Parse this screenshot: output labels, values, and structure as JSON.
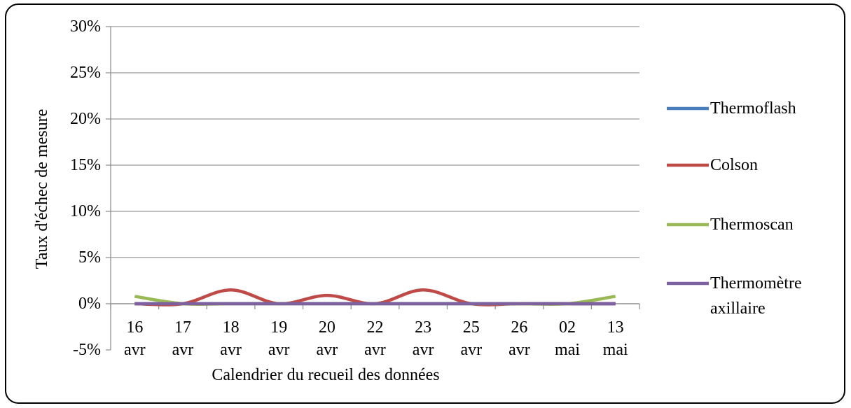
{
  "chart_data": {
    "type": "line",
    "ylabel": "Taux d'échec de mesure",
    "xlabel": "Calendrier du recueil des données",
    "categories": [
      "16 avr",
      "17 avr",
      "18 avr",
      "19 avr",
      "20 avr",
      "22 avr",
      "23 avr",
      "25 avr",
      "26 avr",
      "02 mai",
      "13 mai"
    ],
    "series": [
      {
        "name": "Thermoflash",
        "color": "#4a7ebb",
        "values": [
          0,
          0,
          0,
          0,
          0,
          0,
          0,
          0,
          0,
          0,
          0
        ]
      },
      {
        "name": "Colson",
        "color": "#be4b48",
        "values": [
          0,
          0,
          1.5,
          0,
          0.9,
          0,
          1.5,
          0,
          0,
          0,
          0
        ]
      },
      {
        "name": "Thermoscan",
        "color": "#98b954",
        "values": [
          0.8,
          0,
          0,
          0,
          0,
          0,
          0,
          0,
          0,
          0,
          0.8
        ]
      },
      {
        "name": "Thermomètre axillaire",
        "color": "#7d60a0",
        "values": [
          0,
          0,
          0,
          0,
          0,
          0,
          0,
          0,
          0,
          0,
          0
        ]
      }
    ],
    "ylim": [
      -5,
      30
    ],
    "yticks": [
      {
        "value": -5,
        "label": "-5%"
      },
      {
        "value": 0,
        "label": "0%"
      },
      {
        "value": 5,
        "label": "5%"
      },
      {
        "value": 10,
        "label": "10%"
      },
      {
        "value": 15,
        "label": "15%"
      },
      {
        "value": 20,
        "label": "20%"
      },
      {
        "value": 25,
        "label": "25%"
      },
      {
        "value": 30,
        "label": "30%"
      }
    ],
    "grid": true,
    "smooth": true,
    "legend": "right"
  }
}
